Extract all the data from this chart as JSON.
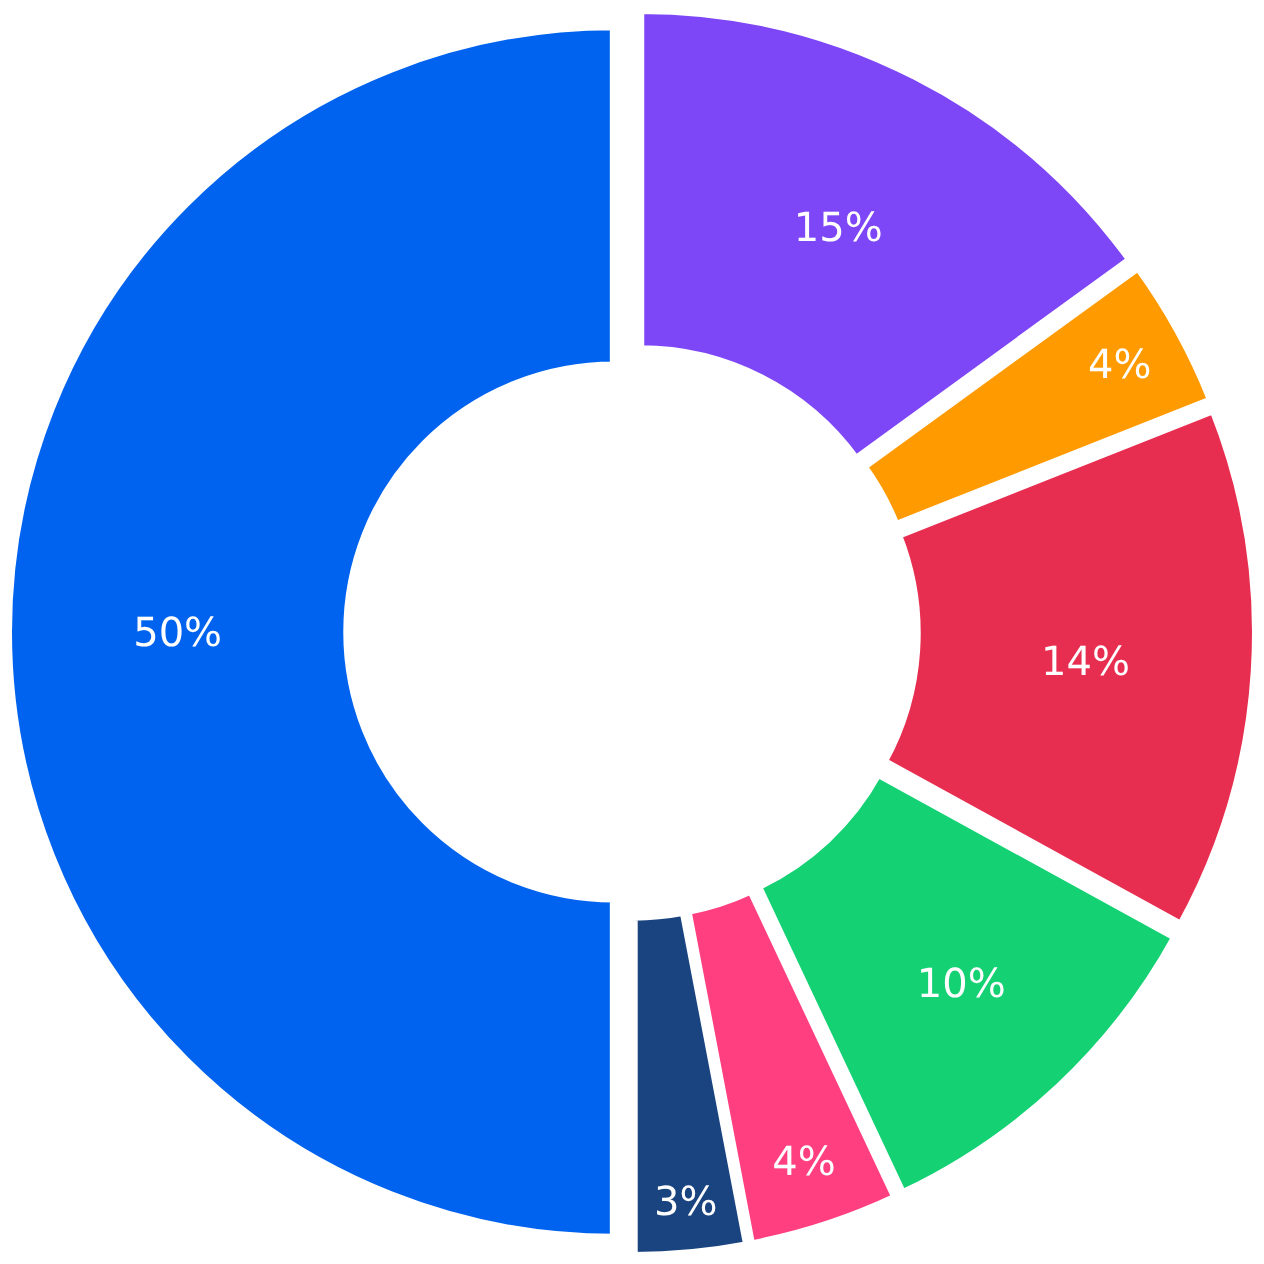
{
  "chart_data": {
    "type": "donut",
    "categories": [
      null,
      null,
      null,
      null,
      null,
      null,
      null
    ],
    "values": [
      15,
      4,
      14,
      10,
      4,
      3,
      50
    ],
    "value_labels": [
      "15%",
      "4%",
      "14%",
      "10%",
      "4%",
      "3%",
      "50%"
    ],
    "colors": [
      "#7d46f7",
      "#ff9a00",
      "#e82e50",
      "#14d174",
      "#ff3f7f",
      "#1a4480",
      "#0063ef"
    ],
    "legend": false
  }
}
